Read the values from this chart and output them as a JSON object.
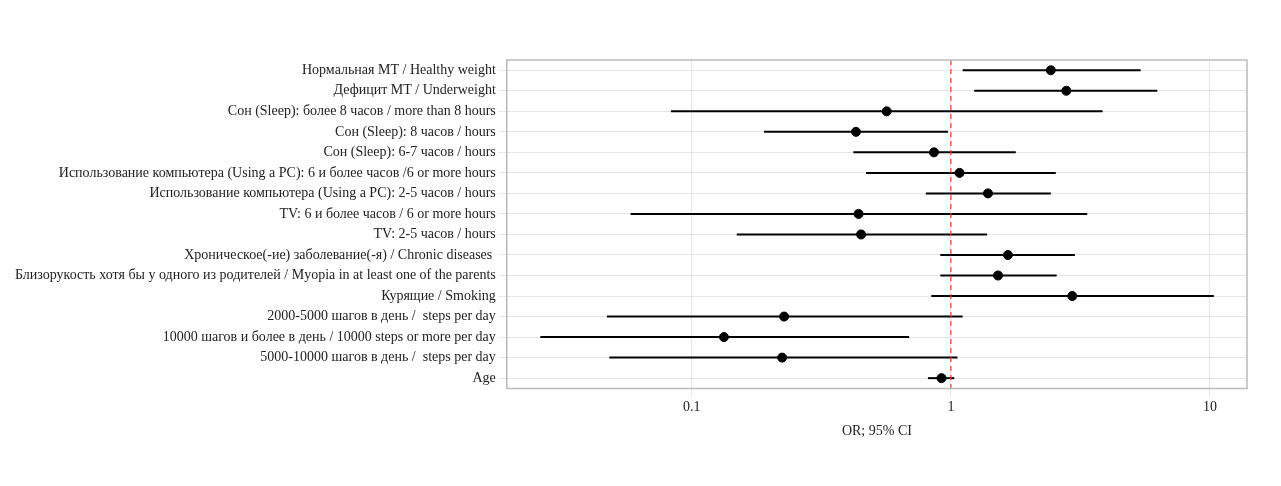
{
  "chart_data": {
    "type": "scatter",
    "orientation": "horizontal",
    "xlabel": "OR; 95% CI",
    "categories": [
      "Нормальная МТ / Healthy weight",
      "Дефицит МТ / Underweight",
      "Сон (Sleep): более 8 часов / more than 8 hours",
      "Сон (Sleep): 8 часов / hours",
      "Сон (Sleep): 6-7 часов / hours",
      "Использование компьютера (Using a PC): 6 и более часов /6 or more hours",
      "Использование компьютера (Using a PC): 2-5 часов / hours",
      "TV: 6 и более часов / 6 or more hours",
      "TV: 2-5 часов / hours",
      "Хроническое(-ие) заболевание(-я) / Chronic diseases ",
      "Близорукость хотя бы у одного из родителей / Myopia in at least one of the parents",
      "Курящие / Smoking",
      "2000-5000 шагов в день /  steps per day",
      "10000 шагов и более в день / 10000 steps or more per day",
      "5000-10000 шагов в день /  steps per day",
      "Age"
    ],
    "values": [
      2.43,
      2.79,
      0.565,
      0.43,
      0.86,
      1.08,
      1.39,
      0.44,
      0.45,
      1.66,
      1.52,
      2.94,
      0.227,
      0.133,
      0.223,
      0.92
    ],
    "errors": [
      [
        1.11,
        5.4
      ],
      [
        1.23,
        6.26
      ],
      [
        0.083,
        3.85
      ],
      [
        0.19,
        0.975
      ],
      [
        0.42,
        1.78
      ],
      [
        0.47,
        2.54
      ],
      [
        0.8,
        2.43
      ],
      [
        0.058,
        3.36
      ],
      [
        0.149,
        1.38
      ],
      [
        0.91,
        3.01
      ],
      [
        0.91,
        2.56
      ],
      [
        0.84,
        10.35
      ],
      [
        0.047,
        1.11
      ],
      [
        0.026,
        0.69
      ],
      [
        0.048,
        1.06
      ],
      [
        0.815,
        1.03
      ]
    ],
    "color": "#000000",
    "marker": "circle",
    "log": "x",
    "grid": true,
    "xlim": [
      0.0193,
      13.9
    ],
    "xticks": [
      0.1,
      1,
      10
    ],
    "ref_lines": [
      {
        "axis": "x",
        "value": 1,
        "color": "#e8421c",
        "line_style": "dashed"
      }
    ]
  }
}
